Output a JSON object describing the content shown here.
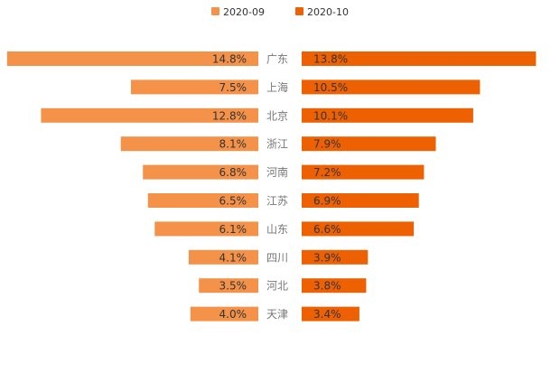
{
  "chart_data": {
    "type": "bar",
    "orientation": "horizontal-butterfly",
    "categories": [
      "广东",
      "上海",
      "北京",
      "浙江",
      "河南",
      "江苏",
      "山东",
      "四川",
      "河北",
      "天津"
    ],
    "series": [
      {
        "name": "2020-09",
        "values": [
          14.8,
          7.5,
          12.8,
          8.1,
          6.8,
          6.5,
          6.1,
          4.1,
          3.5,
          4.0
        ],
        "labels": [
          "14.8%",
          "7.5%",
          "12.8%",
          "8.1%",
          "6.8%",
          "6.5%",
          "6.1%",
          "4.1%",
          "3.5%",
          "4.0%"
        ],
        "color": "#F5924A",
        "side": "left"
      },
      {
        "name": "2020-10",
        "values": [
          13.8,
          10.5,
          10.1,
          7.9,
          7.2,
          6.9,
          6.6,
          3.9,
          3.8,
          3.4
        ],
        "labels": [
          "13.8%",
          "10.5%",
          "10.1%",
          "7.9%",
          "7.2%",
          "6.9%",
          "6.6%",
          "3.9%",
          "3.8%",
          "3.4%"
        ],
        "color": "#EE6102",
        "side": "right"
      }
    ],
    "value_unit": "%",
    "legend_position": "top-center",
    "grid": false,
    "xlim": [
      0,
      15
    ]
  }
}
